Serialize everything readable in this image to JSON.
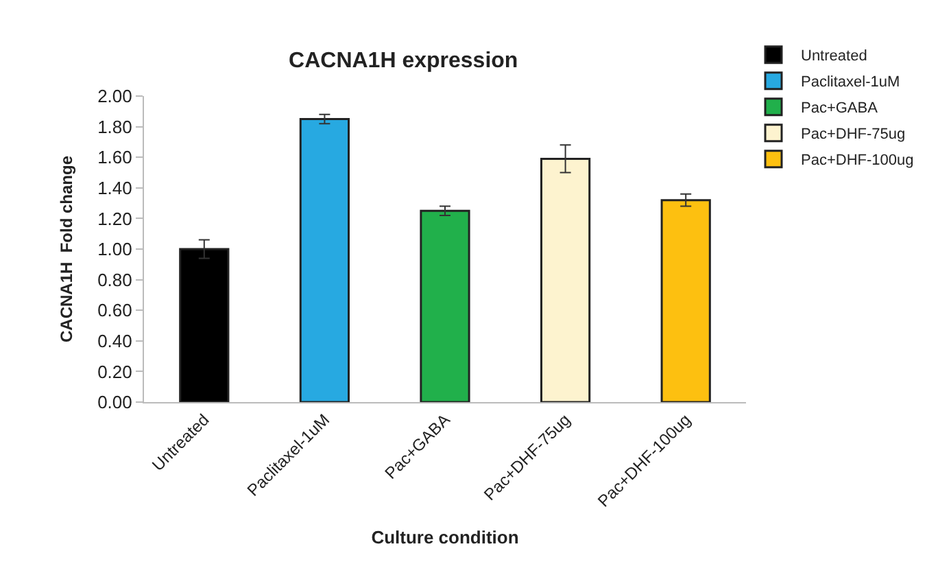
{
  "chart_data": {
    "type": "bar",
    "title": "CACNA1H expression",
    "xlabel": "Culture condition",
    "ylabel": "CACNA1H  Fold change",
    "categories": [
      "Untreated",
      "Paclitaxel-1uM",
      "Pac+GABA",
      "Pac+DHF-75ug",
      "Pac+DHF-100ug"
    ],
    "series": [
      {
        "name": "Untreated",
        "color": "#000000",
        "values": [
          1.0,
          null,
          null,
          null,
          null
        ],
        "errors": [
          0.06,
          null,
          null,
          null,
          null
        ]
      },
      {
        "name": "Paclitaxel-1uM",
        "color": "#27a9e1",
        "values": [
          null,
          1.85,
          null,
          null,
          null
        ],
        "errors": [
          null,
          0.03,
          null,
          null,
          null
        ]
      },
      {
        "name": "Pac+GABA",
        "color": "#21b04b",
        "values": [
          null,
          null,
          1.25,
          null,
          null
        ],
        "errors": [
          null,
          null,
          0.03,
          null,
          null
        ]
      },
      {
        "name": "Pac+DHF-75ug",
        "color": "#fdf3cf",
        "values": [
          null,
          null,
          null,
          1.59,
          null
        ],
        "errors": [
          null,
          null,
          null,
          0.09,
          null
        ]
      },
      {
        "name": "Pac+DHF-100ug",
        "color": "#fdc010",
        "values": [
          null,
          null,
          null,
          null,
          1.32
        ],
        "errors": [
          null,
          null,
          null,
          null,
          0.04
        ]
      }
    ],
    "ylim": [
      0,
      2
    ],
    "yticks": [
      {
        "value": 0,
        "label": "0.00"
      },
      {
        "value": 0.2,
        "label": "0.20"
      },
      {
        "value": 0.4,
        "label": "0.40"
      },
      {
        "value": 0.6,
        "label": "0.60"
      },
      {
        "value": 0.8,
        "label": "0.80"
      },
      {
        "value": 1.0,
        "label": "1.00"
      },
      {
        "value": 1.2,
        "label": "1.20"
      },
      {
        "value": 1.4,
        "label": "1.40"
      },
      {
        "value": 1.6,
        "label": "1.60"
      },
      {
        "value": 1.8,
        "label": "1.80"
      },
      {
        "value": 2.0,
        "label": "2.00"
      }
    ],
    "legend": "top right"
  }
}
